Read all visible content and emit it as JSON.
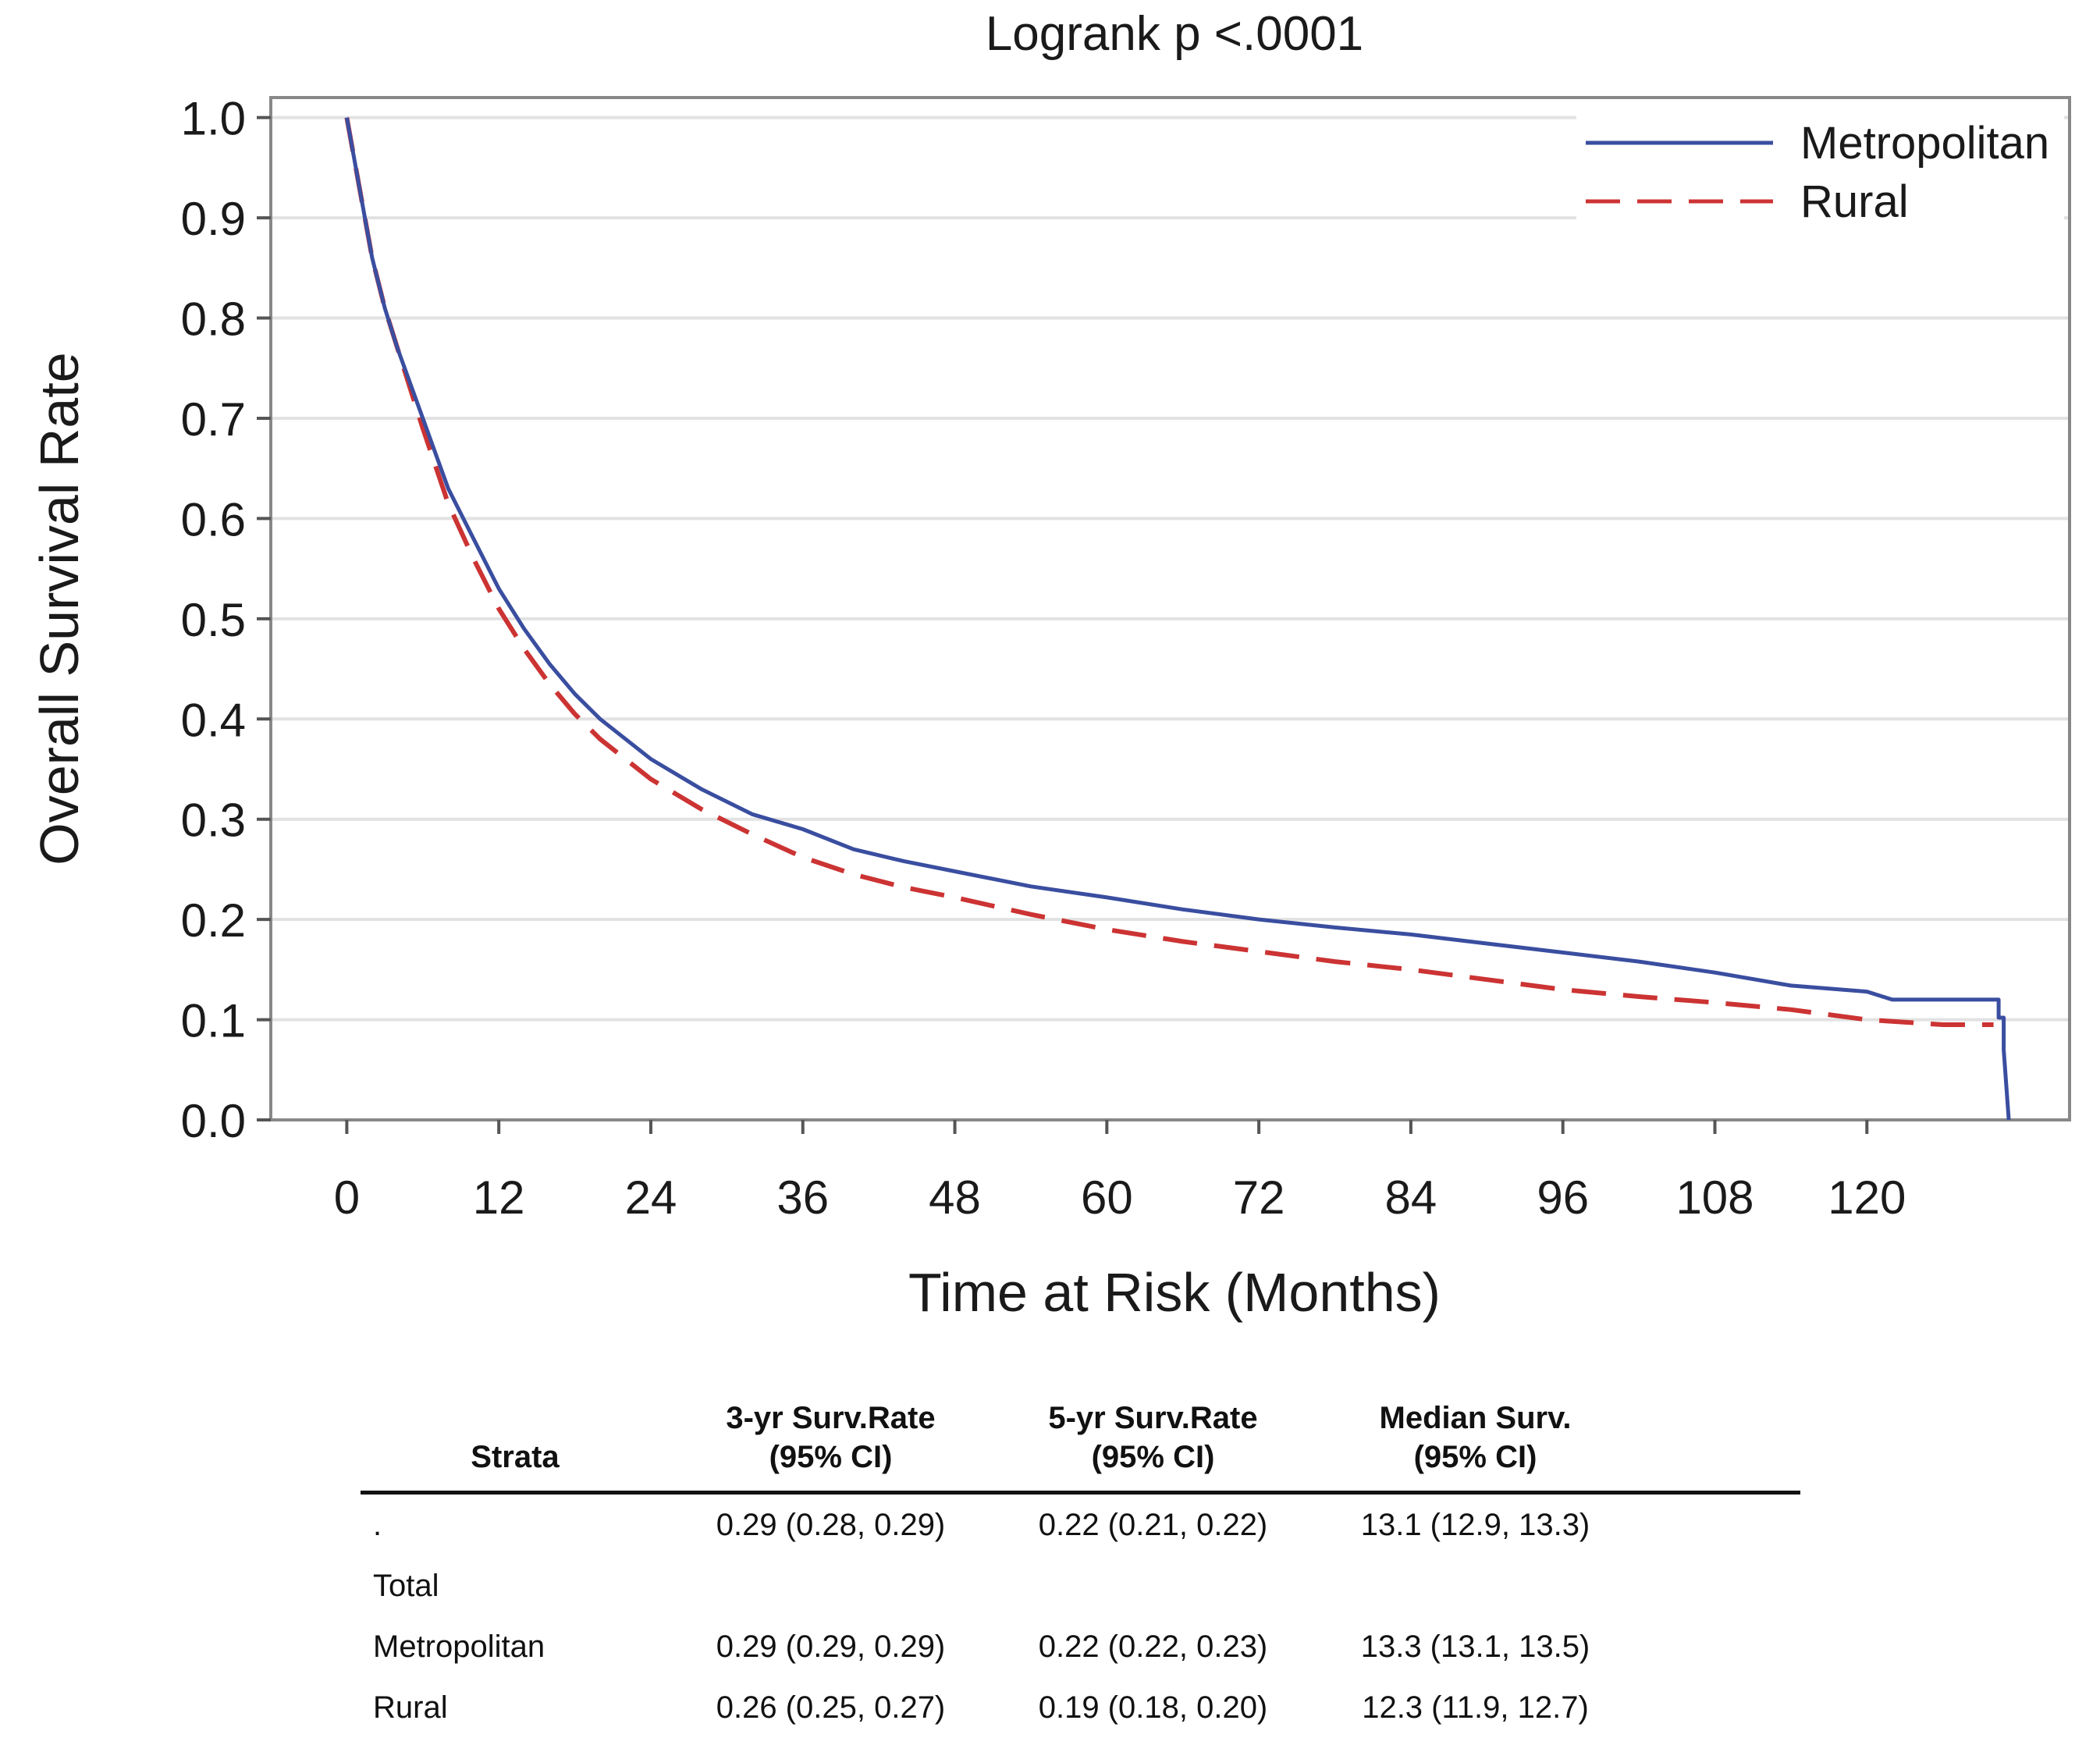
{
  "chart_data": {
    "type": "line",
    "title": "Logrank p <.0001",
    "xlabel": "Time at Risk (Months)",
    "ylabel": "Overall Survival Rate",
    "xlim": [
      -6,
      136
    ],
    "ylim": [
      0,
      1.02
    ],
    "xticks": [
      0,
      12,
      24,
      36,
      48,
      60,
      72,
      84,
      96,
      108,
      120
    ],
    "xtick_labels": [
      "0",
      "12",
      "24",
      "36",
      "48",
      "60",
      "72",
      "84",
      "96",
      "108",
      "120"
    ],
    "yticks": [
      0.0,
      0.1,
      0.2,
      0.3,
      0.4,
      0.5,
      0.6,
      0.7,
      0.8,
      0.9,
      1.0
    ],
    "ytick_labels": [
      "0.0",
      "0.1",
      "0.2",
      "0.3",
      "0.4",
      "0.5",
      "0.6",
      "0.7",
      "0.8",
      "0.9",
      "1.0"
    ],
    "grid": "horizontal",
    "legend_position": "top-right",
    "series": [
      {
        "name": "Metropolitan",
        "color": "#3a4ea0",
        "style": "solid",
        "x": [
          0,
          1,
          2,
          3,
          4,
          6,
          8,
          10,
          12,
          14,
          16,
          18,
          20,
          24,
          28,
          32,
          36,
          40,
          44,
          48,
          54,
          60,
          66,
          72,
          78,
          84,
          90,
          96,
          102,
          108,
          114,
          120,
          122,
          130,
          130.4,
          130.4,
          130.8,
          130.8,
          131.2
        ],
        "y": [
          1.0,
          0.93,
          0.86,
          0.81,
          0.77,
          0.7,
          0.63,
          0.58,
          0.53,
          0.49,
          0.455,
          0.425,
          0.4,
          0.36,
          0.33,
          0.305,
          0.29,
          0.27,
          0.258,
          0.248,
          0.233,
          0.222,
          0.21,
          0.2,
          0.192,
          0.185,
          0.176,
          0.167,
          0.158,
          0.147,
          0.134,
          0.128,
          0.12,
          0.12,
          0.12,
          0.102,
          0.102,
          0.07,
          0.0
        ]
      },
      {
        "name": "Rural",
        "color": "#cc3333",
        "style": "dashed",
        "x": [
          0,
          1,
          2,
          3,
          4,
          6,
          8,
          10,
          12,
          14,
          16,
          18,
          20,
          24,
          28,
          32,
          36,
          40,
          44,
          48,
          54,
          60,
          66,
          72,
          78,
          84,
          90,
          96,
          102,
          108,
          114,
          120,
          126,
          130
        ],
        "y": [
          1.0,
          0.93,
          0.86,
          0.81,
          0.77,
          0.69,
          0.615,
          0.56,
          0.51,
          0.47,
          0.435,
          0.405,
          0.38,
          0.34,
          0.31,
          0.285,
          0.262,
          0.245,
          0.232,
          0.222,
          0.205,
          0.19,
          0.178,
          0.168,
          0.158,
          0.15,
          0.14,
          0.13,
          0.123,
          0.117,
          0.11,
          0.1,
          0.095,
          0.095
        ]
      }
    ]
  },
  "table": {
    "headers": [
      {
        "lines": [
          "Strata"
        ]
      },
      {
        "lines": [
          "3-yr Surv.Rate",
          "(95% CI)"
        ]
      },
      {
        "lines": [
          "5-yr Surv.Rate",
          "(95% CI)"
        ]
      },
      {
        "lines": [
          "Median Surv.",
          "(95% CI)"
        ]
      }
    ],
    "rows": [
      {
        "strata": ".",
        "surv3": "0.29 (0.28, 0.29)",
        "surv5": "0.22 (0.21, 0.22)",
        "median": "13.1 (12.9, 13.3)"
      },
      {
        "strata": "Total",
        "surv3": "",
        "surv5": "",
        "median": ""
      },
      {
        "strata": "Metropolitan",
        "surv3": "0.29 (0.29, 0.29)",
        "surv5": "0.22 (0.22, 0.23)",
        "median": "13.3 (13.1, 13.5)"
      },
      {
        "strata": "Rural",
        "surv3": "0.26 (0.25, 0.27)",
        "surv5": "0.19 (0.18, 0.20)",
        "median": "12.3 (11.9, 12.7)"
      }
    ]
  }
}
